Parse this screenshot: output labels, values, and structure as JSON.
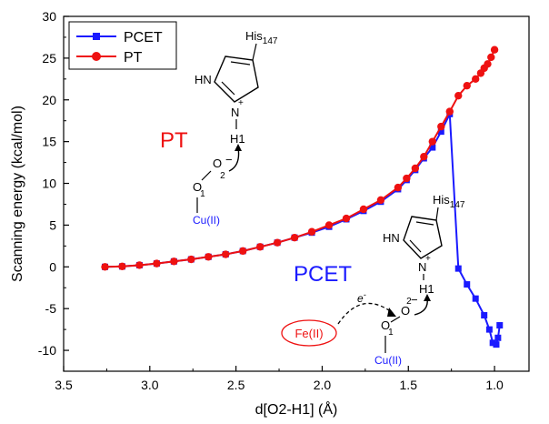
{
  "chart_data": {
    "type": "line",
    "xlabel": "d[O2-H1] (Å)",
    "ylabel": "Scanning energy (kcal/mol)",
    "xlim": [
      3.5,
      0.8
    ],
    "ylim": [
      -12.5,
      30
    ],
    "x_reversed": true,
    "x_ticks": [
      "3.5",
      "3.0",
      "2.5",
      "2.0",
      "1.5",
      "1.0"
    ],
    "y_ticks": [
      "-10",
      "-5",
      "0",
      "5",
      "10",
      "15",
      "20",
      "25",
      "30"
    ],
    "x_tick_values": [
      3.5,
      3.0,
      2.5,
      2.0,
      1.5,
      1.0
    ],
    "y_tick_values": [
      -10,
      -5,
      0,
      5,
      10,
      15,
      20,
      25,
      30
    ],
    "legend_position": "top-left",
    "series": [
      {
        "name": "PCET",
        "color": "#1a1aff",
        "marker": "square",
        "x": [
          3.26,
          3.16,
          3.06,
          2.96,
          2.86,
          2.76,
          2.66,
          2.56,
          2.46,
          2.36,
          2.26,
          2.16,
          2.06,
          1.96,
          1.86,
          1.76,
          1.66,
          1.56,
          1.51,
          1.46,
          1.41,
          1.36,
          1.31,
          1.26,
          1.21,
          1.16,
          1.11,
          1.06,
          1.03,
          1.01,
          0.99,
          0.98,
          0.97
        ],
        "y": [
          0.0,
          0.05,
          0.2,
          0.4,
          0.65,
          0.9,
          1.2,
          1.5,
          1.9,
          2.4,
          2.9,
          3.5,
          4.1,
          4.8,
          5.7,
          6.7,
          7.8,
          9.3,
          10.4,
          11.6,
          13.0,
          14.3,
          16.2,
          18.3,
          -0.2,
          -2.1,
          -3.8,
          -5.8,
          -7.5,
          -9.1,
          -9.3,
          -8.5,
          -7.0
        ]
      },
      {
        "name": "PT",
        "color": "#ee1111",
        "marker": "circle",
        "x": [
          3.26,
          3.16,
          3.06,
          2.96,
          2.86,
          2.76,
          2.66,
          2.56,
          2.46,
          2.36,
          2.26,
          2.16,
          2.06,
          1.96,
          1.86,
          1.76,
          1.66,
          1.56,
          1.51,
          1.46,
          1.41,
          1.36,
          1.31,
          1.26,
          1.21,
          1.16,
          1.11,
          1.08,
          1.06,
          1.04,
          1.02,
          1.0
        ],
        "y": [
          0.0,
          0.05,
          0.2,
          0.4,
          0.65,
          0.9,
          1.2,
          1.5,
          1.9,
          2.4,
          2.9,
          3.5,
          4.2,
          5.0,
          5.8,
          6.9,
          8.0,
          9.5,
          10.6,
          11.8,
          13.2,
          15.0,
          16.8,
          18.6,
          20.5,
          21.7,
          22.5,
          23.2,
          23.8,
          24.3,
          25.1,
          26.0
        ]
      }
    ],
    "annotations": {
      "pt_label": "PT",
      "pt_label_color": "#ee1111",
      "pcet_label": "PCET",
      "pcet_label_color": "#1a1aff",
      "his_upper": "His",
      "his_upper_sub": "147",
      "hn_upper": "HN",
      "n_upper": "N",
      "plus_upper": "+",
      "h1_upper": "H1",
      "o2_upper": "O",
      "o2_sub_upper": "2",
      "minus_upper": "−",
      "o1_upper": "O",
      "o1_sub_upper": "1",
      "cu_upper": "Cu(II)",
      "cu_upper_color": "#1a1aff",
      "his_lower": "His",
      "his_lower_sub": "147",
      "hn_lower": "HN",
      "n_lower": "N",
      "plus_lower": "+",
      "h1_lower": "H1",
      "o2_lower": "O",
      "o2_sub_lower": "2",
      "minus_lower": "−",
      "o1_lower": "O",
      "o1_sub_lower": "1",
      "cu_lower": "Cu(II)",
      "cu_lower_color": "#1a1aff",
      "electron": "e",
      "electron_sup": "-",
      "fe": "Fe(II)",
      "fe_color": "#ee1111"
    }
  }
}
